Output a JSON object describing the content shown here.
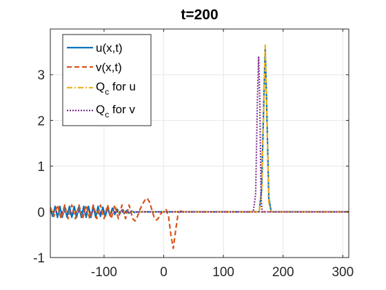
{
  "chart_data": {
    "type": "line",
    "title": "t=200",
    "xlabel": "",
    "ylabel": "",
    "xlim": [
      -190,
      310
    ],
    "ylim": [
      -1,
      4
    ],
    "xticks": [
      -100,
      0,
      100,
      200,
      300
    ],
    "yticks": [
      -1,
      0,
      1,
      2,
      3
    ],
    "xtick_labels": [
      "-100",
      "0",
      "100",
      "200",
      "300"
    ],
    "ytick_labels": [
      "-1",
      "0",
      "1",
      "2",
      "3"
    ],
    "grid": true,
    "legend_position": "top-left",
    "series": [
      {
        "name": "u(x,t)",
        "color": "#0072BD",
        "style": "solid",
        "x": [
          -190,
          -186,
          -182,
          -178,
          -174,
          -170,
          -166,
          -162,
          -158,
          -154,
          -150,
          -146,
          -142,
          -138,
          -134,
          -130,
          -126,
          -122,
          -118,
          -114,
          -110,
          -106,
          -102,
          -98,
          -94,
          -90,
          -86,
          -82,
          -78,
          -74,
          -70,
          -66,
          -62,
          -58,
          -54,
          -50,
          -40,
          0,
          100,
          160,
          164,
          168,
          170,
          172,
          176,
          180,
          200,
          310
        ],
        "y": [
          0.05,
          -0.1,
          0.12,
          -0.12,
          0.12,
          -0.12,
          0.12,
          -0.12,
          0.12,
          -0.12,
          0.12,
          -0.12,
          0.12,
          -0.12,
          0.12,
          -0.12,
          0.12,
          -0.12,
          0.12,
          -0.12,
          0.12,
          -0.1,
          0.1,
          -0.1,
          0.1,
          -0.08,
          0.08,
          -0.06,
          0.06,
          -0.05,
          0.04,
          -0.04,
          0.03,
          -0.03,
          0.02,
          -0.01,
          0,
          0,
          0,
          0,
          0.5,
          2.6,
          3.55,
          2.6,
          0.3,
          0,
          0,
          0
        ]
      },
      {
        "name": "v(x,t)",
        "color": "#D95319",
        "style": "dashed",
        "x": [
          -190,
          -184,
          -178,
          -172,
          -166,
          -160,
          -154,
          -148,
          -142,
          -136,
          -130,
          -124,
          -118,
          -112,
          -106,
          -100,
          -94,
          -88,
          -82,
          -76,
          -70,
          -64,
          -58,
          -52,
          -48,
          -44,
          -40,
          -36,
          -32,
          -28,
          -24,
          -20,
          -16,
          -12,
          -8,
          -4,
          0,
          4,
          8,
          12,
          16,
          20,
          24,
          28,
          32,
          40,
          310
        ],
        "y": [
          0.1,
          -0.1,
          0.15,
          -0.15,
          0.15,
          -0.15,
          0.15,
          -0.15,
          0.15,
          -0.15,
          0.15,
          -0.15,
          0.15,
          -0.15,
          0.15,
          -0.15,
          0.15,
          -0.15,
          0.15,
          -0.15,
          0.15,
          -0.15,
          0.15,
          -0.15,
          -0.2,
          -0.1,
          0.05,
          0.15,
          0.25,
          0.3,
          0.22,
          0.05,
          -0.12,
          -0.18,
          -0.12,
          -0.02,
          0,
          0.05,
          -0.1,
          -0.5,
          -0.8,
          -0.4,
          -0.05,
          0.02,
          0,
          0,
          0
        ]
      },
      {
        "name": "Q_c for u",
        "color": "#EDB120",
        "style": "dashdot",
        "x": [
          -190,
          160,
          164,
          168,
          170,
          172,
          176,
          180,
          310
        ],
        "y": [
          0,
          0,
          0.4,
          2.5,
          3.65,
          2.6,
          0.2,
          0,
          0
        ]
      },
      {
        "name": "Q_c for v",
        "color": "#7E2F8E",
        "style": "dotted",
        "x": [
          -190,
          150,
          154,
          157,
          159,
          161,
          163,
          165,
          170,
          310
        ],
        "y": [
          0,
          0,
          0.4,
          2.5,
          3.4,
          2.4,
          0.3,
          0,
          0,
          0
        ]
      }
    ]
  },
  "legend": {
    "entries": [
      {
        "label": "u(x,t)"
      },
      {
        "label": "v(x,t)"
      },
      {
        "label_main": "Q",
        "label_sub": "c",
        "label_rest": " for u"
      },
      {
        "label_main": "Q",
        "label_sub": "c",
        "label_rest": " for v"
      }
    ]
  }
}
